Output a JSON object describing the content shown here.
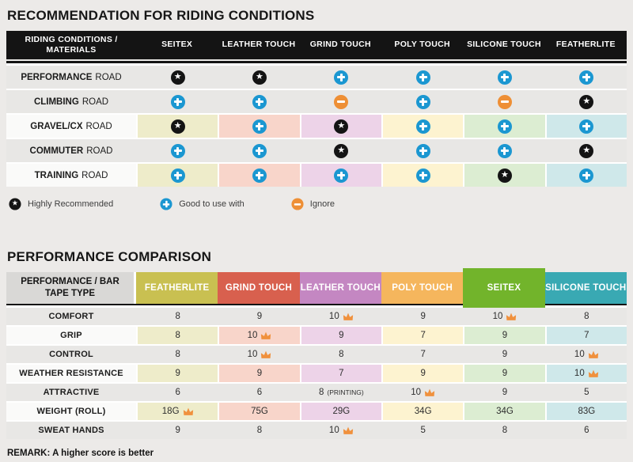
{
  "colors": {
    "page_bg": "#eceae8",
    "black": "#141414",
    "row_gray": "#e8e7e5",
    "label_white": "#fafaf9",
    "header_label_bg": "#d9d8d6",
    "plus": "#1b97d1",
    "minus": "#ee8f35",
    "crown": "#f0913d",
    "pastels": [
      "#eeecca",
      "#f8d5ca",
      "#edd3e8",
      "#fdf3d0",
      "#dcedd2",
      "#cfe8ea"
    ]
  },
  "riding_table": {
    "title": "RECOMMENDATION FOR RIDING CONDITIONS",
    "header_label": "RIDING CONDITIONS / MATERIALS",
    "columns": [
      "SEITEX",
      "LEATHER TOUCH",
      "GRIND TOUCH",
      "POLY TOUCH",
      "SILICONE TOUCH",
      "FEATHERLITE"
    ],
    "rows": [
      {
        "label_bold": "PERFORMANCE",
        "label_rest": "ROAD",
        "highlight": false,
        "cells": [
          "star",
          "star",
          "plus",
          "plus",
          "plus",
          "plus"
        ]
      },
      {
        "label_bold": "CLIMBING",
        "label_rest": "ROAD",
        "highlight": false,
        "cells": [
          "plus",
          "plus",
          "minus",
          "plus",
          "minus",
          "star"
        ]
      },
      {
        "label_bold": "GRAVEL/CX",
        "label_rest": "ROAD",
        "highlight": true,
        "cells": [
          "star",
          "plus",
          "star",
          "plus",
          "plus",
          "plus"
        ]
      },
      {
        "label_bold": "COMMUTER",
        "label_rest": "ROAD",
        "highlight": false,
        "cells": [
          "plus",
          "plus",
          "star",
          "plus",
          "plus",
          "star"
        ]
      },
      {
        "label_bold": "TRAINING",
        "label_rest": "ROAD",
        "highlight": true,
        "cells": [
          "plus",
          "plus",
          "plus",
          "plus",
          "star",
          "plus"
        ]
      }
    ],
    "legend": [
      {
        "icon": "star",
        "label": "Highly Recommended"
      },
      {
        "icon": "plus",
        "label": "Good to use with"
      },
      {
        "icon": "minus",
        "label": "Ignore"
      }
    ]
  },
  "performance_table": {
    "title": "PERFORMANCE COMPARISON",
    "header_label": "PERFORMANCE / BAR TAPE TYPE",
    "columns": [
      {
        "label": "FEATHERLITE",
        "color": "#c9c051",
        "emphasis": false
      },
      {
        "label": "GRIND TOUCH",
        "color": "#d8604e",
        "emphasis": false
      },
      {
        "label": "LEATHER TOUCH",
        "color": "#c487c2",
        "emphasis": false
      },
      {
        "label": "POLY TOUCH",
        "color": "#f5b65d",
        "emphasis": false
      },
      {
        "label": "SEITEX",
        "color": "#72b42b",
        "emphasis": true
      },
      {
        "label": "SILICONE TOUCH",
        "color": "#39a9b3",
        "emphasis": false
      }
    ],
    "rows": [
      {
        "label": "COMFORT",
        "highlight": false,
        "cells": [
          {
            "v": "8"
          },
          {
            "v": "9"
          },
          {
            "v": "10",
            "crown": true
          },
          {
            "v": "9"
          },
          {
            "v": "10",
            "crown": true
          },
          {
            "v": "8"
          }
        ]
      },
      {
        "label": "GRIP",
        "highlight": true,
        "cells": [
          {
            "v": "8"
          },
          {
            "v": "10",
            "crown": true
          },
          {
            "v": "9"
          },
          {
            "v": "7"
          },
          {
            "v": "9"
          },
          {
            "v": "7"
          }
        ]
      },
      {
        "label": "CONTROL",
        "highlight": false,
        "cells": [
          {
            "v": "8"
          },
          {
            "v": "10",
            "crown": true
          },
          {
            "v": "8"
          },
          {
            "v": "7"
          },
          {
            "v": "9"
          },
          {
            "v": "10",
            "crown": true
          }
        ]
      },
      {
        "label": "WEATHER RESISTANCE",
        "highlight": true,
        "cells": [
          {
            "v": "9"
          },
          {
            "v": "9"
          },
          {
            "v": "7"
          },
          {
            "v": "9"
          },
          {
            "v": "9"
          },
          {
            "v": "10",
            "crown": true
          }
        ]
      },
      {
        "label": "ATTRACTIVE",
        "highlight": false,
        "cells": [
          {
            "v": "6"
          },
          {
            "v": "6"
          },
          {
            "v": "8",
            "note": "(PRINTING)"
          },
          {
            "v": "10",
            "crown": true
          },
          {
            "v": "9"
          },
          {
            "v": "5"
          }
        ]
      },
      {
        "label": "WEIGHT (ROLL)",
        "highlight": true,
        "cells": [
          {
            "v": "18G",
            "crown": true
          },
          {
            "v": "75G"
          },
          {
            "v": "29G"
          },
          {
            "v": "34G"
          },
          {
            "v": "34G"
          },
          {
            "v": "83G"
          }
        ]
      },
      {
        "label": "SWEAT HANDS",
        "highlight": false,
        "cells": [
          {
            "v": "9"
          },
          {
            "v": "8"
          },
          {
            "v": "10",
            "crown": true
          },
          {
            "v": "5"
          },
          {
            "v": "8"
          },
          {
            "v": "6"
          }
        ]
      }
    ],
    "remark": "REMARK: A higher score is better"
  }
}
